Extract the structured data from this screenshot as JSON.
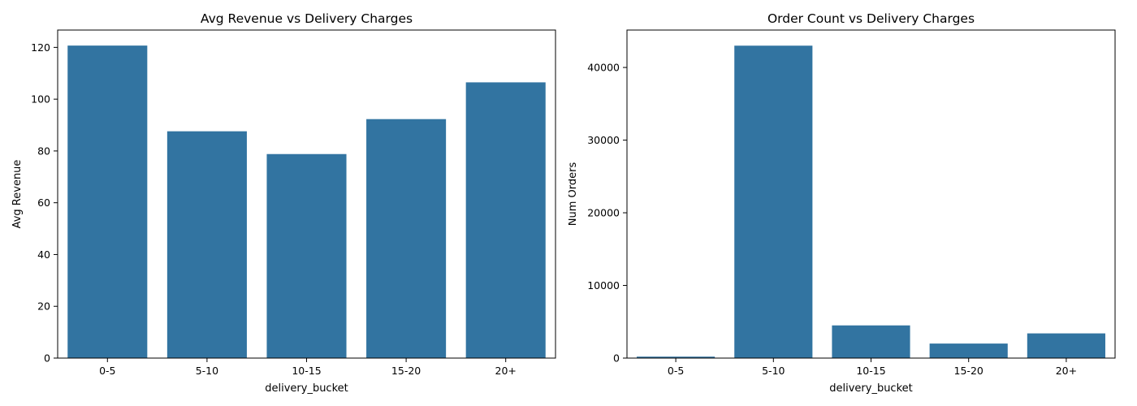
{
  "chart_data": [
    {
      "type": "bar",
      "title": "Avg Revenue vs Delivery Charges",
      "xlabel": "delivery_bucket",
      "ylabel": "Avg Revenue",
      "categories": [
        "0-5",
        "5-10",
        "10-15",
        "15-20",
        "20+"
      ],
      "values": [
        120.7,
        87.6,
        78.8,
        92.3,
        106.5
      ],
      "ylim": [
        0,
        126.7
      ],
      "yticks": [
        0,
        20,
        40,
        60,
        80,
        100,
        120
      ],
      "ytick_labels": [
        "0",
        "20",
        "40",
        "60",
        "80",
        "100",
        "120"
      ],
      "grid": false,
      "color": "#3274a1"
    },
    {
      "type": "bar",
      "title": "Order Count vs Delivery Charges",
      "xlabel": "delivery_bucket",
      "ylabel": "Num Orders",
      "categories": [
        "0-5",
        "5-10",
        "10-15",
        "15-20",
        "20+"
      ],
      "values": [
        200,
        43000,
        4500,
        2000,
        3400
      ],
      "ylim": [
        0,
        45150
      ],
      "yticks": [
        0,
        10000,
        20000,
        30000,
        40000
      ],
      "ytick_labels": [
        "0",
        "10000",
        "20000",
        "30000",
        "40000"
      ],
      "grid": false,
      "color": "#3274a1"
    }
  ]
}
